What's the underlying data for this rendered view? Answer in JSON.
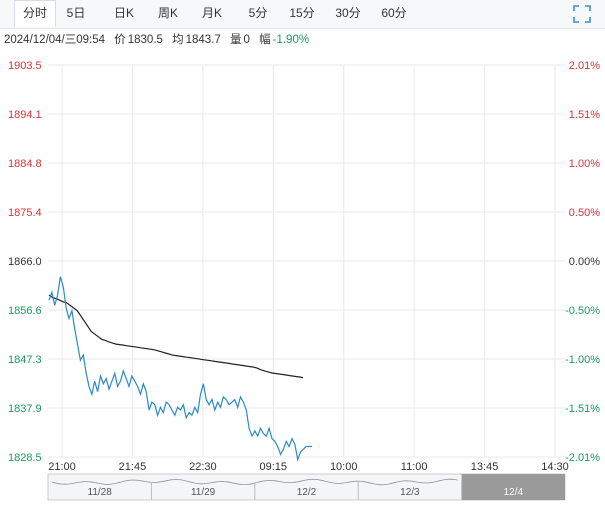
{
  "tabs": [
    {
      "label": "分时",
      "active": true
    },
    {
      "label": "5日"
    },
    {
      "label": "日K"
    },
    {
      "label": "周K"
    },
    {
      "label": "月K"
    },
    {
      "label": "5分"
    },
    {
      "label": "15分"
    },
    {
      "label": "30分"
    },
    {
      "label": "60分"
    }
  ],
  "info": {
    "datetime": "2024/12/04/三09:54",
    "price_label": "价",
    "price": "1830.5",
    "avg_label": "均",
    "avg": "1843.7",
    "vol_label": "量",
    "vol": "0",
    "change_label": "幅",
    "change": "-1.90%"
  },
  "icons": {
    "fullscreen": "fullscreen-icon"
  },
  "colors": {
    "up": "#dd3333",
    "down": "#1a9c5a",
    "price_line": "#2a8bc7",
    "avg_line": "#222222",
    "grid": "#e8eaee"
  },
  "chart_data": {
    "type": "line",
    "y_ticks_left": [
      "1903.5",
      "1894.1",
      "1884.8",
      "1875.4",
      "1866.0",
      "1856.6",
      "1847.3",
      "1837.9",
      "1828.5"
    ],
    "y_ticks_right": [
      "2.01%",
      "1.51%",
      "1.00%",
      "0.50%",
      "0.00%",
      "-0.50%",
      "-1.00%",
      "-1.51%",
      "-2.01%"
    ],
    "ylim": [
      1828.5,
      1903.5
    ],
    "base": 1866.0,
    "x_ticks": [
      "21:00",
      "21:45",
      "22:30",
      "09:15",
      "10:00",
      "11:00",
      "13:45",
      "14:30"
    ],
    "series": [
      {
        "values": [
          1858.5,
          1860.0,
          1857.5,
          1859.5,
          1863.0,
          1861.0,
          1857.0,
          1855.0,
          1856.5,
          1853.0,
          1850.0,
          1847.0,
          1848.0,
          1844.5,
          1842.0,
          1840.5,
          1843.0,
          1841.0,
          1844.0,
          1842.5,
          1843.5,
          1841.5,
          1843.0,
          1844.5,
          1842.0,
          1843.0,
          1845.0,
          1843.5,
          1842.0,
          1844.0,
          1843.0,
          1842.0,
          1840.5,
          1842.5,
          1841.0,
          1837.5,
          1839.0,
          1838.5,
          1836.5,
          1838.0,
          1837.0,
          1839.0,
          1838.5,
          1837.5,
          1836.5,
          1838.0,
          1837.5,
          1838.5,
          1836.0,
          1837.0,
          1836.5,
          1838.0,
          1837.0,
          1840.5,
          1842.5,
          1839.5,
          1838.5,
          1839.5,
          1837.5,
          1839.0,
          1838.0,
          1840.0,
          1839.5,
          1838.5,
          1839.0,
          1839.5,
          1838.0,
          1840.0,
          1839.0,
          1837.5,
          1834.0,
          1832.5,
          1833.5,
          1832.5,
          1834.0,
          1833.0,
          1832.5,
          1834.0,
          1832.0,
          1831.5,
          1830.5,
          1829.0,
          1830.0,
          1831.5,
          1830.5,
          1832.0,
          1831.0,
          1828.0,
          1829.5,
          1830.0,
          1830.5,
          1830.5,
          1830.5
        ]
      },
      {
        "values": [
          1859.5,
          1859.0,
          1858.8,
          1858.5,
          1858.2,
          1858.0,
          1857.5,
          1857.0,
          1856.5,
          1855.5,
          1854.5,
          1853.5,
          1852.5,
          1852.0,
          1851.5,
          1851.0,
          1850.8,
          1850.5,
          1850.3,
          1850.1,
          1850.0,
          1849.9,
          1849.8,
          1849.7,
          1849.6,
          1849.5,
          1849.4,
          1849.3,
          1849.2,
          1849.1,
          1849.0,
          1848.8,
          1848.6,
          1848.4,
          1848.2,
          1848.0,
          1847.9,
          1847.8,
          1847.7,
          1847.6,
          1847.5,
          1847.4,
          1847.3,
          1847.2,
          1847.1,
          1847.0,
          1846.9,
          1846.8,
          1846.7,
          1846.6,
          1846.5,
          1846.4,
          1846.3,
          1846.2,
          1846.1,
          1846.0,
          1845.9,
          1845.8,
          1845.7,
          1845.5,
          1845.2,
          1845.0,
          1844.8,
          1844.6,
          1844.5,
          1844.4,
          1844.3,
          1844.2,
          1844.1,
          1844.0,
          1843.9,
          1843.8,
          1843.7
        ]
      }
    ]
  },
  "navigator": {
    "dates": [
      "11/28",
      "11/29",
      "12/2",
      "12/3",
      "12/4"
    ],
    "selected_index": 4
  }
}
